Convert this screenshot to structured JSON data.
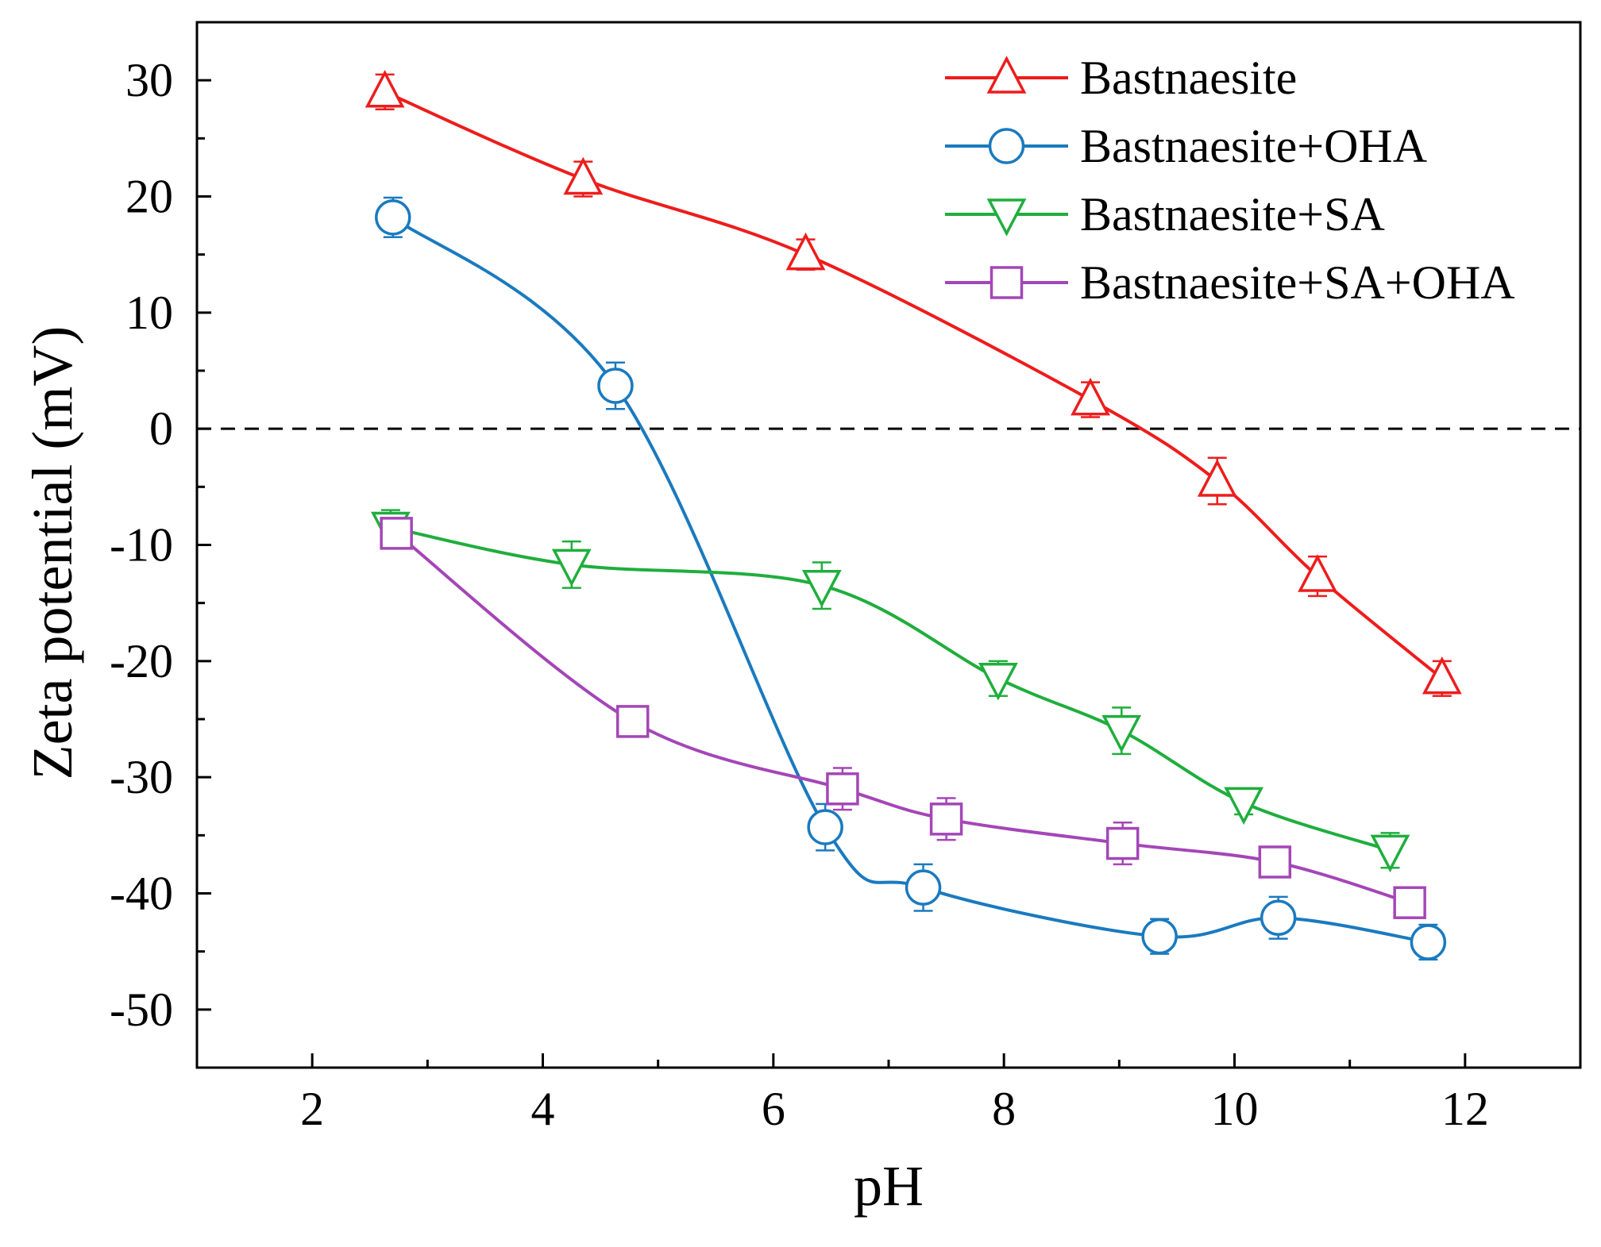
{
  "chart_data": {
    "type": "line",
    "title": "",
    "xlabel": "pH",
    "ylabel": "Zeta potential (mV)",
    "xlim": [
      1,
      13
    ],
    "ylim": [
      -55,
      35
    ],
    "xticks": [
      2,
      4,
      6,
      8,
      10,
      12
    ],
    "yticks": [
      30,
      20,
      10,
      0,
      -10,
      -20,
      -30,
      -40,
      -50
    ],
    "reference_line": {
      "y": 0,
      "style": "dashed"
    },
    "legend_position": "top-right",
    "series": [
      {
        "name": "Bastnaesite",
        "color": "#ee1c1c",
        "marker": "triangle-up",
        "x": [
          2.63,
          4.35,
          6.28,
          8.75,
          9.85,
          10.72,
          11.8
        ],
        "y": [
          29.0,
          21.5,
          15.0,
          2.5,
          -4.5,
          -12.7,
          -21.5
        ],
        "err": [
          1.5,
          1.5,
          1.3,
          1.5,
          2.0,
          1.7,
          1.5
        ]
      },
      {
        "name": "Bastnaesite+OHA",
        "color": "#1a7abf",
        "marker": "circle",
        "x": [
          2.7,
          4.63,
          6.45,
          7.3,
          9.35,
          10.38,
          11.68
        ],
        "y": [
          18.2,
          3.7,
          -34.3,
          -39.5,
          -43.7,
          -42.1,
          -44.2
        ],
        "err": [
          1.7,
          2.0,
          2.0,
          2.0,
          1.5,
          1.8,
          1.5
        ]
      },
      {
        "name": "Bastnaesite+SA",
        "color": "#1fae3c",
        "marker": "triangle-down",
        "x": [
          2.68,
          4.25,
          6.42,
          7.95,
          9.02,
          10.08,
          11.35
        ],
        "y": [
          -8.5,
          -11.7,
          -13.5,
          -21.5,
          -26.0,
          -32.2,
          -36.3
        ],
        "err": [
          1.5,
          2.0,
          2.0,
          1.5,
          2.0,
          1.0,
          1.5
        ]
      },
      {
        "name": "Bastnaesite+SA+OHA",
        "color": "#a446b7",
        "marker": "square",
        "x": [
          2.73,
          4.78,
          6.6,
          7.5,
          9.03,
          10.35,
          11.52
        ],
        "y": [
          -9.0,
          -25.2,
          -31.0,
          -33.6,
          -35.7,
          -37.3,
          -40.8
        ],
        "err": [
          1.2,
          1.2,
          1.8,
          1.8,
          1.8,
          1.2,
          1.3
        ]
      }
    ]
  }
}
